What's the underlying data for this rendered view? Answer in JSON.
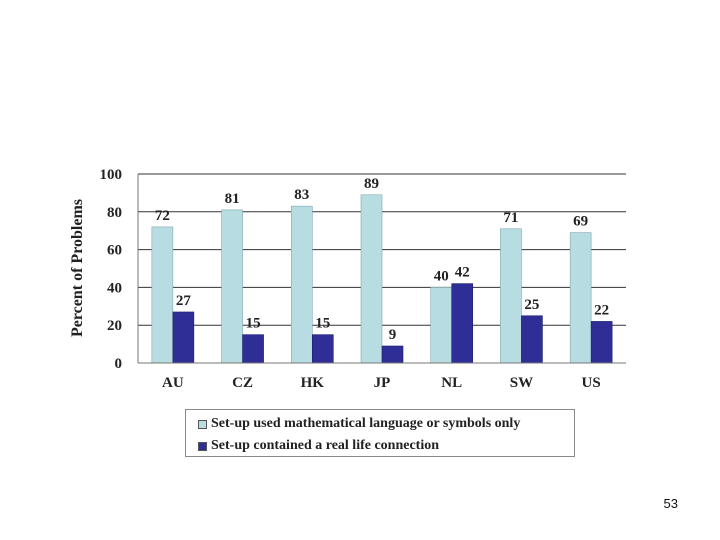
{
  "chart_data": {
    "type": "bar",
    "categories": [
      "AU",
      "CZ",
      "HK",
      "JP",
      "NL",
      "SW",
      "US"
    ],
    "series": [
      {
        "name": "Set-up used mathematical language or symbols only",
        "values": [
          72,
          81,
          83,
          89,
          40,
          71,
          69
        ],
        "color": "#b7dde2"
      },
      {
        "name": "Set-up contained a real life connection",
        "values": [
          27,
          15,
          15,
          9,
          42,
          25,
          22
        ],
        "color": "#2e2e96"
      }
    ],
    "title": "",
    "xlabel": "",
    "ylabel": "Percent of Problems",
    "ylim": [
      0,
      100
    ],
    "yticks": [
      0,
      20,
      40,
      60,
      80,
      100
    ],
    "grid": true,
    "legend_position": "bottom",
    "data_labels": true
  },
  "page_number": "53"
}
